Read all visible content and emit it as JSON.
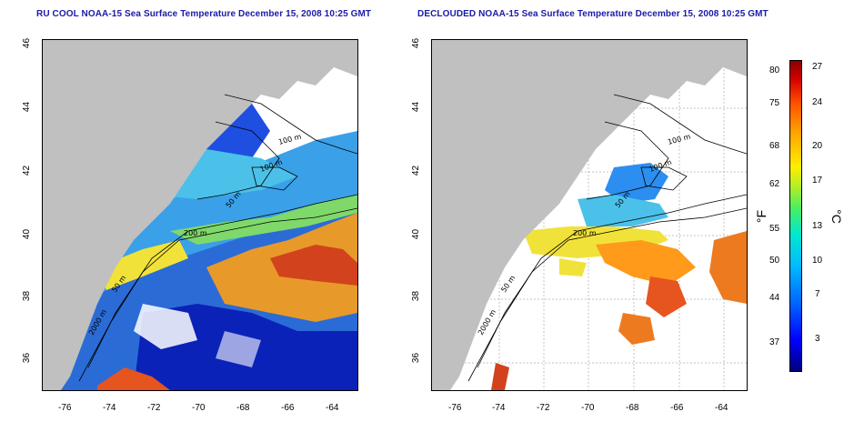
{
  "titles": {
    "left": "RU COOL NOAA-15 Sea Surface Temperature December 15, 2008 10:25 GMT",
    "right": "DECLOUDED NOAA-15 Sea Surface Temperature December 15, 2008 10:25 GMT"
  },
  "axes": {
    "lat_ticks": [
      "46",
      "44",
      "42",
      "40",
      "38",
      "36"
    ],
    "lon_ticks": [
      "-76",
      "-74",
      "-72",
      "-70",
      "-68",
      "-66",
      "-64"
    ],
    "lat_range": [
      35,
      46
    ],
    "lon_range": [
      -77,
      -63
    ]
  },
  "contours": {
    "labels_left": [
      "100 m",
      "100 m",
      "50 m",
      "200 m",
      "50 m",
      "2000 m"
    ],
    "labels_right": [
      "100 m",
      "100 m",
      "50 m",
      "200 m",
      "50 m",
      "2000 m"
    ]
  },
  "colorbar": {
    "fahrenheit_label": "°F",
    "celsius_label": "°C",
    "fahrenheit_ticks": [
      "80",
      "75",
      "68",
      "62",
      "55",
      "50",
      "44",
      "37"
    ],
    "celsius_ticks": [
      "27",
      "24",
      "20",
      "17",
      "13",
      "10",
      "7",
      "3"
    ],
    "colors": [
      "#00007a",
      "#0000ff",
      "#00bbff",
      "#44ee66",
      "#ffee00",
      "#ff5500",
      "#8a0000"
    ]
  },
  "colors": {
    "land": "#c0c0c0",
    "title": "#1a1aa8"
  }
}
